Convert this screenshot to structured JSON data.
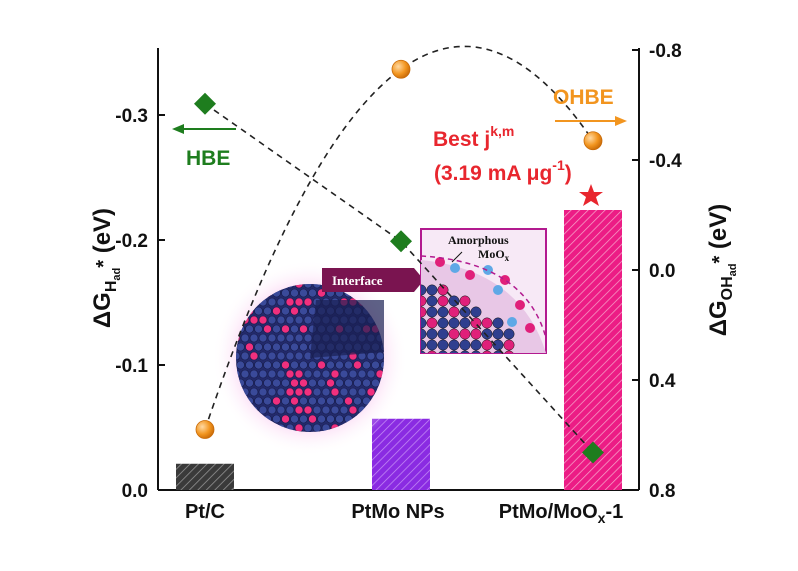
{
  "chart_data": {
    "type": "bar",
    "categories": [
      "Pt/C",
      "PtMo NPs",
      "PtMo/MoOₓ-1"
    ],
    "ylabel_left": "ΔG_H_ad*(eV)",
    "ylabel_right": "ΔG_OH_ad*(eV)",
    "ylim_left": [
      0,
      -0.35
    ],
    "ylim_right": [
      0.8,
      -0.8
    ],
    "left_ticks": [
      "0.0",
      "-0.1",
      "-0.2",
      "-0.3"
    ],
    "right_ticks": [
      "0.8",
      "0.4",
      "0.0",
      "-0.4",
      "-0.8"
    ],
    "series": [
      {
        "name": "",
        "kind": "bar",
        "axis": "left",
        "values": [
          -0.021,
          -0.057,
          -0.224
        ],
        "colors": [
          "#3a3a3a",
          "#8a2be2",
          "#ec1c85"
        ]
      },
      {
        "name": "HBE",
        "kind": "line-diamond",
        "axis": "left",
        "values": [
          -0.309,
          -0.199,
          -0.03
        ],
        "color": "#1e7d1e"
      },
      {
        "name": "OHBE",
        "kind": "line-circle",
        "axis": "right",
        "values": [
          0.58,
          -0.73,
          -0.47
        ],
        "color": "#f2951f"
      }
    ],
    "annotations": {
      "hbe_label": "HBE",
      "ohbe_label": "OHBE",
      "best_label": "Best j",
      "best_sup": "k,m",
      "best_value_pre": "(3.19 mA μg",
      "best_value_sup": "-1",
      "best_value_post": ")",
      "interface_label": "Interface",
      "inset_label_1": "Amorphous",
      "inset_label_2": "MoO",
      "inset_label_2_sub": "x"
    },
    "colors": {
      "hbe": "#1e7d1e",
      "ohbe": "#f2951f",
      "best": "#e8262e"
    }
  }
}
